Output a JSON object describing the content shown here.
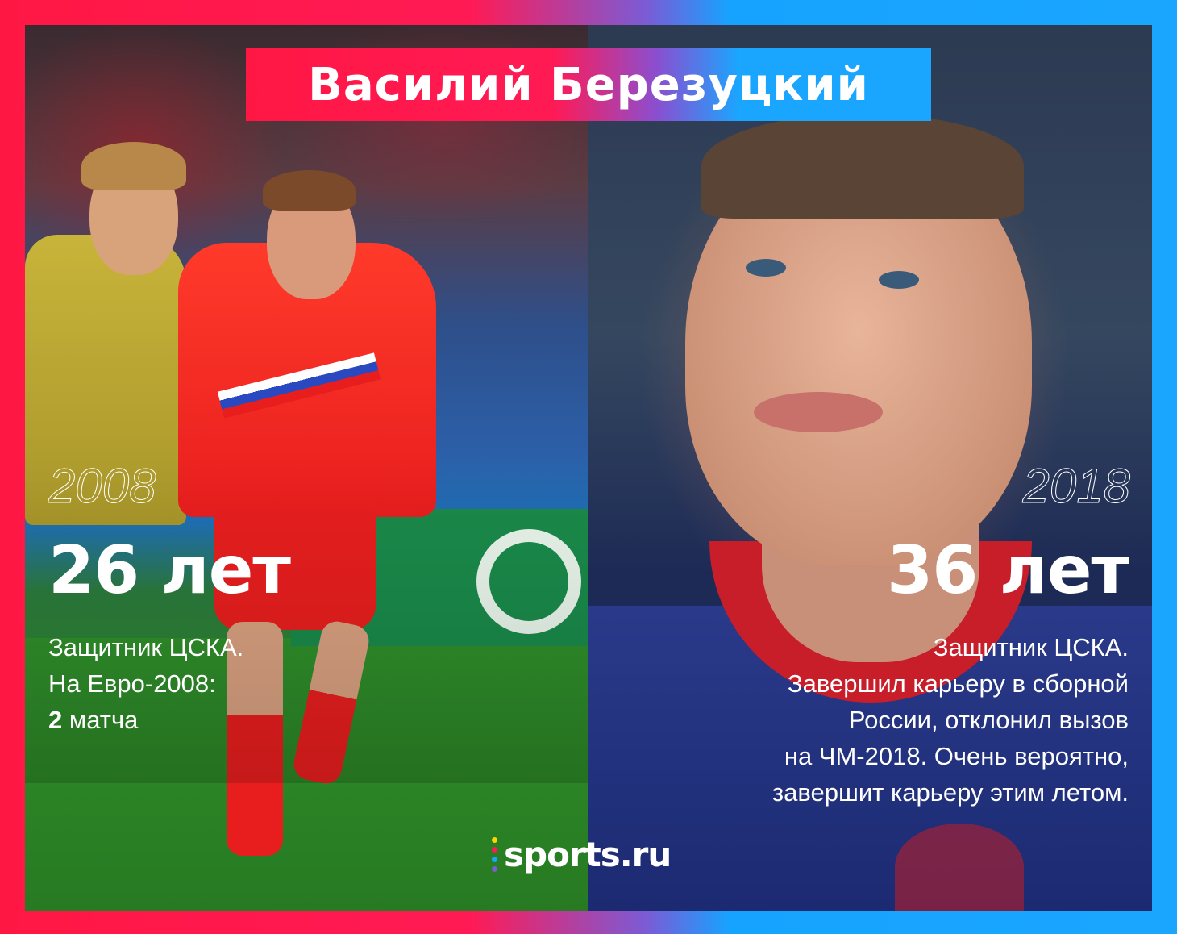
{
  "title": "Василий Березуцкий",
  "left": {
    "year": "2008",
    "age": "26 лет",
    "line1": "Защитник ЦСКА.",
    "line2": "На Евро-2008:",
    "matches_num": "2",
    "matches_word": "матча"
  },
  "right": {
    "year": "2018",
    "age": "36 лет",
    "lines": [
      "Защитник ЦСКА.",
      "Завершил карьеру в сборной",
      "России, отклонил вызов",
      "на ЧМ-2018.  Очень вероятно,",
      "завершит карьеру этим летом."
    ]
  },
  "logo": {
    "text": "sports.ru",
    "dot_colors": [
      "#ffd400",
      "#ff1a55",
      "#1aa6ff",
      "#7a5cd6"
    ]
  },
  "colors": {
    "red": "#ff1744",
    "blue": "#1aa6ff"
  }
}
